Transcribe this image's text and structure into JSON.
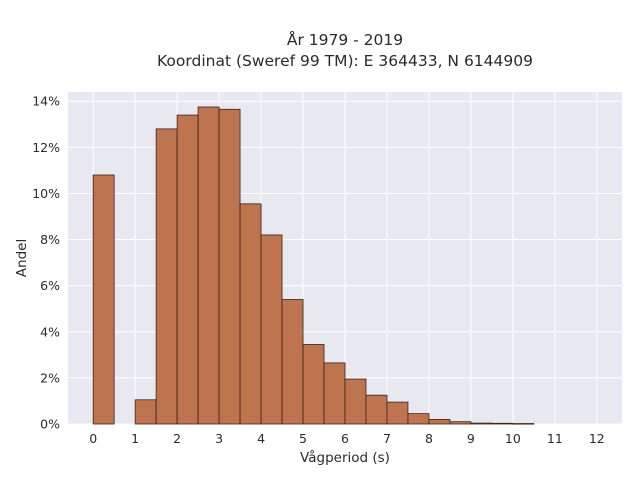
{
  "chart_data": {
    "type": "bar",
    "title_line1": "År 1979 - 2019",
    "title_line2": "Koordinat (Sweref 99 TM): E 364433, N 6144909",
    "xlabel": "Vågperiod (s)",
    "ylabel": "Andel",
    "xlim": [
      -0.6,
      12.6
    ],
    "ylim": [
      0,
      14.4
    ],
    "x_ticks": [
      0,
      1,
      2,
      3,
      4,
      5,
      6,
      7,
      8,
      9,
      10,
      11,
      12
    ],
    "y_ticks": [
      0,
      2,
      4,
      6,
      8,
      10,
      12,
      14
    ],
    "y_tick_suffix": "%",
    "bin_width": 0.5,
    "bins": [
      {
        "x0": 0.0,
        "value": 10.8
      },
      {
        "x0": 0.5,
        "value": 0.0
      },
      {
        "x0": 1.0,
        "value": 1.05
      },
      {
        "x0": 1.5,
        "value": 12.8
      },
      {
        "x0": 2.0,
        "value": 13.4
      },
      {
        "x0": 2.5,
        "value": 13.75
      },
      {
        "x0": 3.0,
        "value": 13.65
      },
      {
        "x0": 3.5,
        "value": 9.55
      },
      {
        "x0": 4.0,
        "value": 8.2
      },
      {
        "x0": 4.5,
        "value": 5.4
      },
      {
        "x0": 5.0,
        "value": 3.45
      },
      {
        "x0": 5.5,
        "value": 2.65
      },
      {
        "x0": 6.0,
        "value": 1.95
      },
      {
        "x0": 6.5,
        "value": 1.25
      },
      {
        "x0": 7.0,
        "value": 0.95
      },
      {
        "x0": 7.5,
        "value": 0.45
      },
      {
        "x0": 8.0,
        "value": 0.2
      },
      {
        "x0": 8.5,
        "value": 0.1
      },
      {
        "x0": 9.0,
        "value": 0.04
      },
      {
        "x0": 9.5,
        "value": 0.03
      },
      {
        "x0": 10.0,
        "value": 0.02
      }
    ],
    "bar_color": "#bf7450",
    "bar_edge_color": "#3a2418",
    "plot_background": "#e8e8f1",
    "grid": true
  }
}
